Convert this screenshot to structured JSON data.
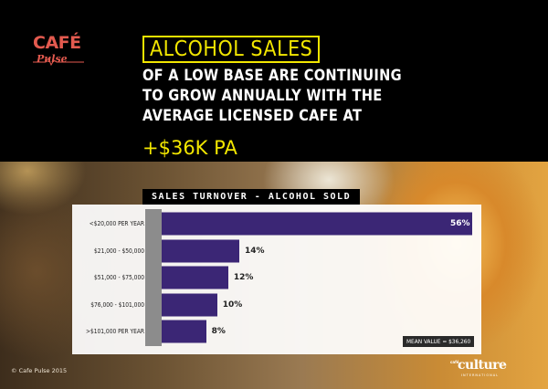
{
  "brand": {
    "logo_word": "CAFÉ",
    "logo_sub": "Pulse",
    "logo_color": "#e35a4f"
  },
  "headline": {
    "boxed": "ALCOHOL SALES",
    "lines": [
      "OF A LOW BASE ARE CONTINUING",
      "TO GROW ANNUALLY WITH THE",
      "AVERAGE LICENSED CAFE AT"
    ],
    "highlight": "+$36K PA",
    "accent_color": "#f2e600"
  },
  "chart_data": {
    "type": "bar",
    "orientation": "horizontal",
    "title": "SALES TURNOVER - ALCOHOL SOLD",
    "categories": [
      "<$20,000 PER YEAR",
      "$21,000 - $50,000",
      "$51,000 - $75,000",
      "$76,000 - $101,000",
      ">$101,000 PER YEAR"
    ],
    "values": [
      56,
      14,
      12,
      10,
      8
    ],
    "value_labels": [
      "56%",
      "14%",
      "12%",
      "10%",
      "8%"
    ],
    "bar_color": "#3b2675",
    "annotation": "MEAN VALUE = $36,260",
    "xlim": [
      0,
      56
    ],
    "grid": false
  },
  "footer": {
    "copyright": "© Cafe Pulse 2015",
    "partner_logo_small": "café",
    "partner_logo_word": "culture",
    "partner_logo_sub": "INTERNATIONAL"
  }
}
